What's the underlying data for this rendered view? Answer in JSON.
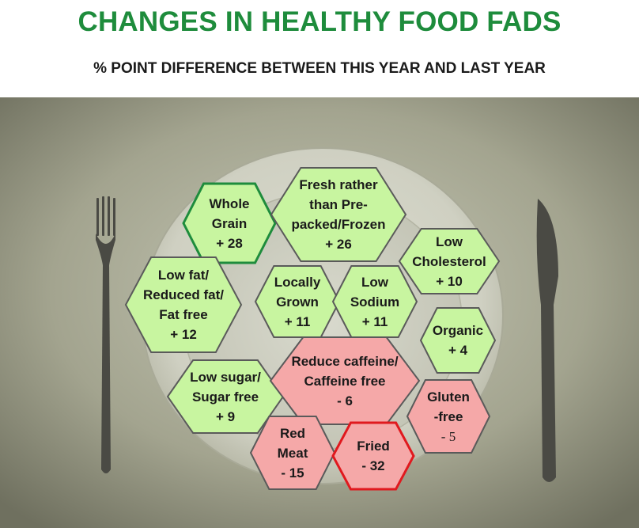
{
  "title": "CHANGES IN HEALTHY FOOD FADS",
  "subtitle": "% POINT DIFFERENCE BETWEEN THIS YEAR AND LAST YEAR",
  "colors": {
    "title": "#1e8c3c",
    "positive_fill": "#c8f5a0",
    "positive_stroke": "#5a5a5a",
    "negative_fill": "#f5a8a8",
    "negative_stroke": "#5a5a5a",
    "highlight_positive_stroke": "#1e8c3c",
    "highlight_negative_stroke": "#e0191e"
  },
  "items": [
    {
      "id": "whole-grain",
      "lines": [
        "Whole",
        "Grain",
        "+ 28"
      ],
      "value": 28,
      "sign": "positive",
      "highlight": true
    },
    {
      "id": "fresh",
      "lines": [
        "Fresh rather",
        "than Pre-",
        "packed/Frozen",
        "+ 26"
      ],
      "value": 26,
      "sign": "positive",
      "highlight": false
    },
    {
      "id": "low-fat",
      "lines": [
        "Low fat/",
        "Reduced fat/",
        "Fat free",
        "+ 12"
      ],
      "value": 12,
      "sign": "positive",
      "highlight": false
    },
    {
      "id": "locally-grown",
      "lines": [
        "Locally",
        "Grown",
        "+ 11"
      ],
      "value": 11,
      "sign": "positive",
      "highlight": false
    },
    {
      "id": "low-sodium",
      "lines": [
        "Low",
        "Sodium",
        "+ 11"
      ],
      "value": 11,
      "sign": "positive",
      "highlight": false
    },
    {
      "id": "low-cholesterol",
      "lines": [
        "Low",
        "Cholesterol",
        "+ 10"
      ],
      "value": 10,
      "sign": "positive",
      "highlight": false
    },
    {
      "id": "low-sugar",
      "lines": [
        "Low sugar/",
        "Sugar free",
        "+ 9"
      ],
      "value": 9,
      "sign": "positive",
      "highlight": false
    },
    {
      "id": "organic",
      "lines": [
        "Organic",
        "+ 4"
      ],
      "value": 4,
      "sign": "positive",
      "highlight": false
    },
    {
      "id": "gluten-free",
      "lines": [
        "Gluten",
        "-free",
        "- 5"
      ],
      "value": -5,
      "sign": "negative",
      "highlight": false
    },
    {
      "id": "reduce-caffeine",
      "lines": [
        "Reduce caffeine/",
        "Caffeine free",
        "- 6"
      ],
      "value": -6,
      "sign": "negative",
      "highlight": false
    },
    {
      "id": "red-meat",
      "lines": [
        "Red",
        "Meat",
        "- 15"
      ],
      "value": -15,
      "sign": "negative",
      "highlight": false
    },
    {
      "id": "fried",
      "lines": [
        "Fried",
        "- 32"
      ],
      "value": -32,
      "sign": "negative",
      "highlight": true
    }
  ]
}
